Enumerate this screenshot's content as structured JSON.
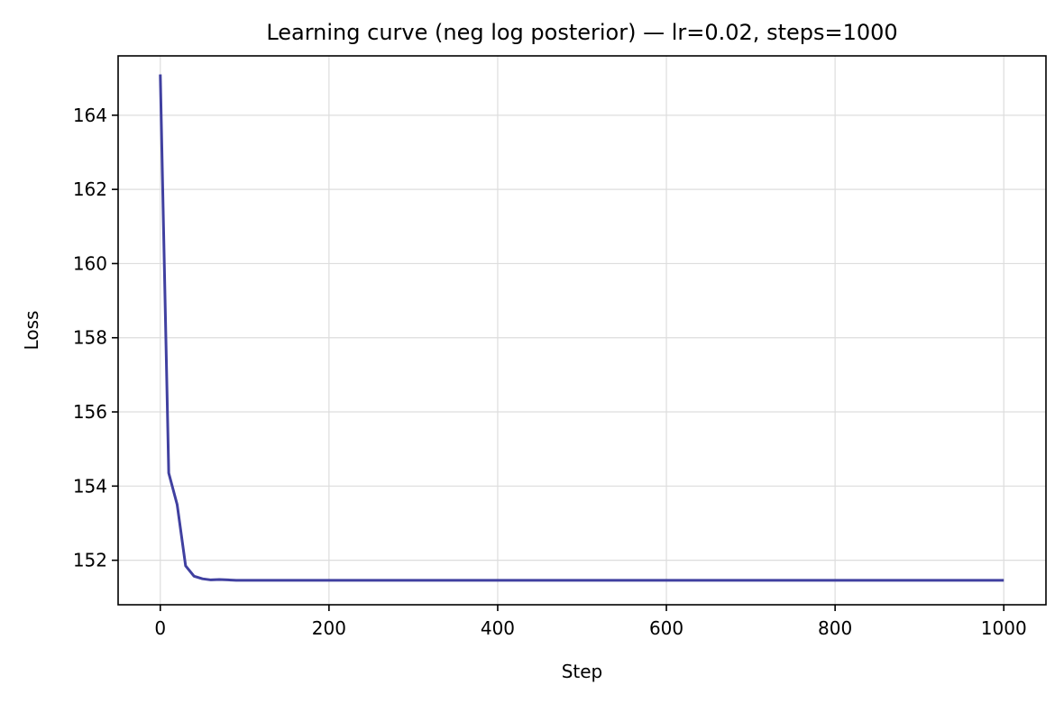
{
  "chart_data": {
    "type": "line",
    "title": "Learning curve (neg log posterior) — lr=0.02, steps=1000",
    "xlabel": "Step",
    "ylabel": "Loss",
    "xlim": [
      -50,
      1050
    ],
    "ylim": [
      150.8,
      165.6
    ],
    "xticks": [
      0,
      200,
      400,
      600,
      800,
      1000
    ],
    "yticks": [
      152,
      154,
      156,
      158,
      160,
      162,
      164
    ],
    "grid": true,
    "series": [
      {
        "color": "#4040a0",
        "x": [
          0,
          10,
          20,
          30,
          40,
          50,
          60,
          70,
          80,
          90,
          100,
          150,
          200,
          300,
          400,
          500,
          600,
          700,
          800,
          900,
          1000
        ],
        "y": [
          165.1,
          154.35,
          153.5,
          151.85,
          151.57,
          151.5,
          151.47,
          151.48,
          151.47,
          151.46,
          151.46,
          151.46,
          151.46,
          151.46,
          151.46,
          151.46,
          151.46,
          151.46,
          151.46,
          151.46,
          151.46
        ]
      }
    ]
  }
}
